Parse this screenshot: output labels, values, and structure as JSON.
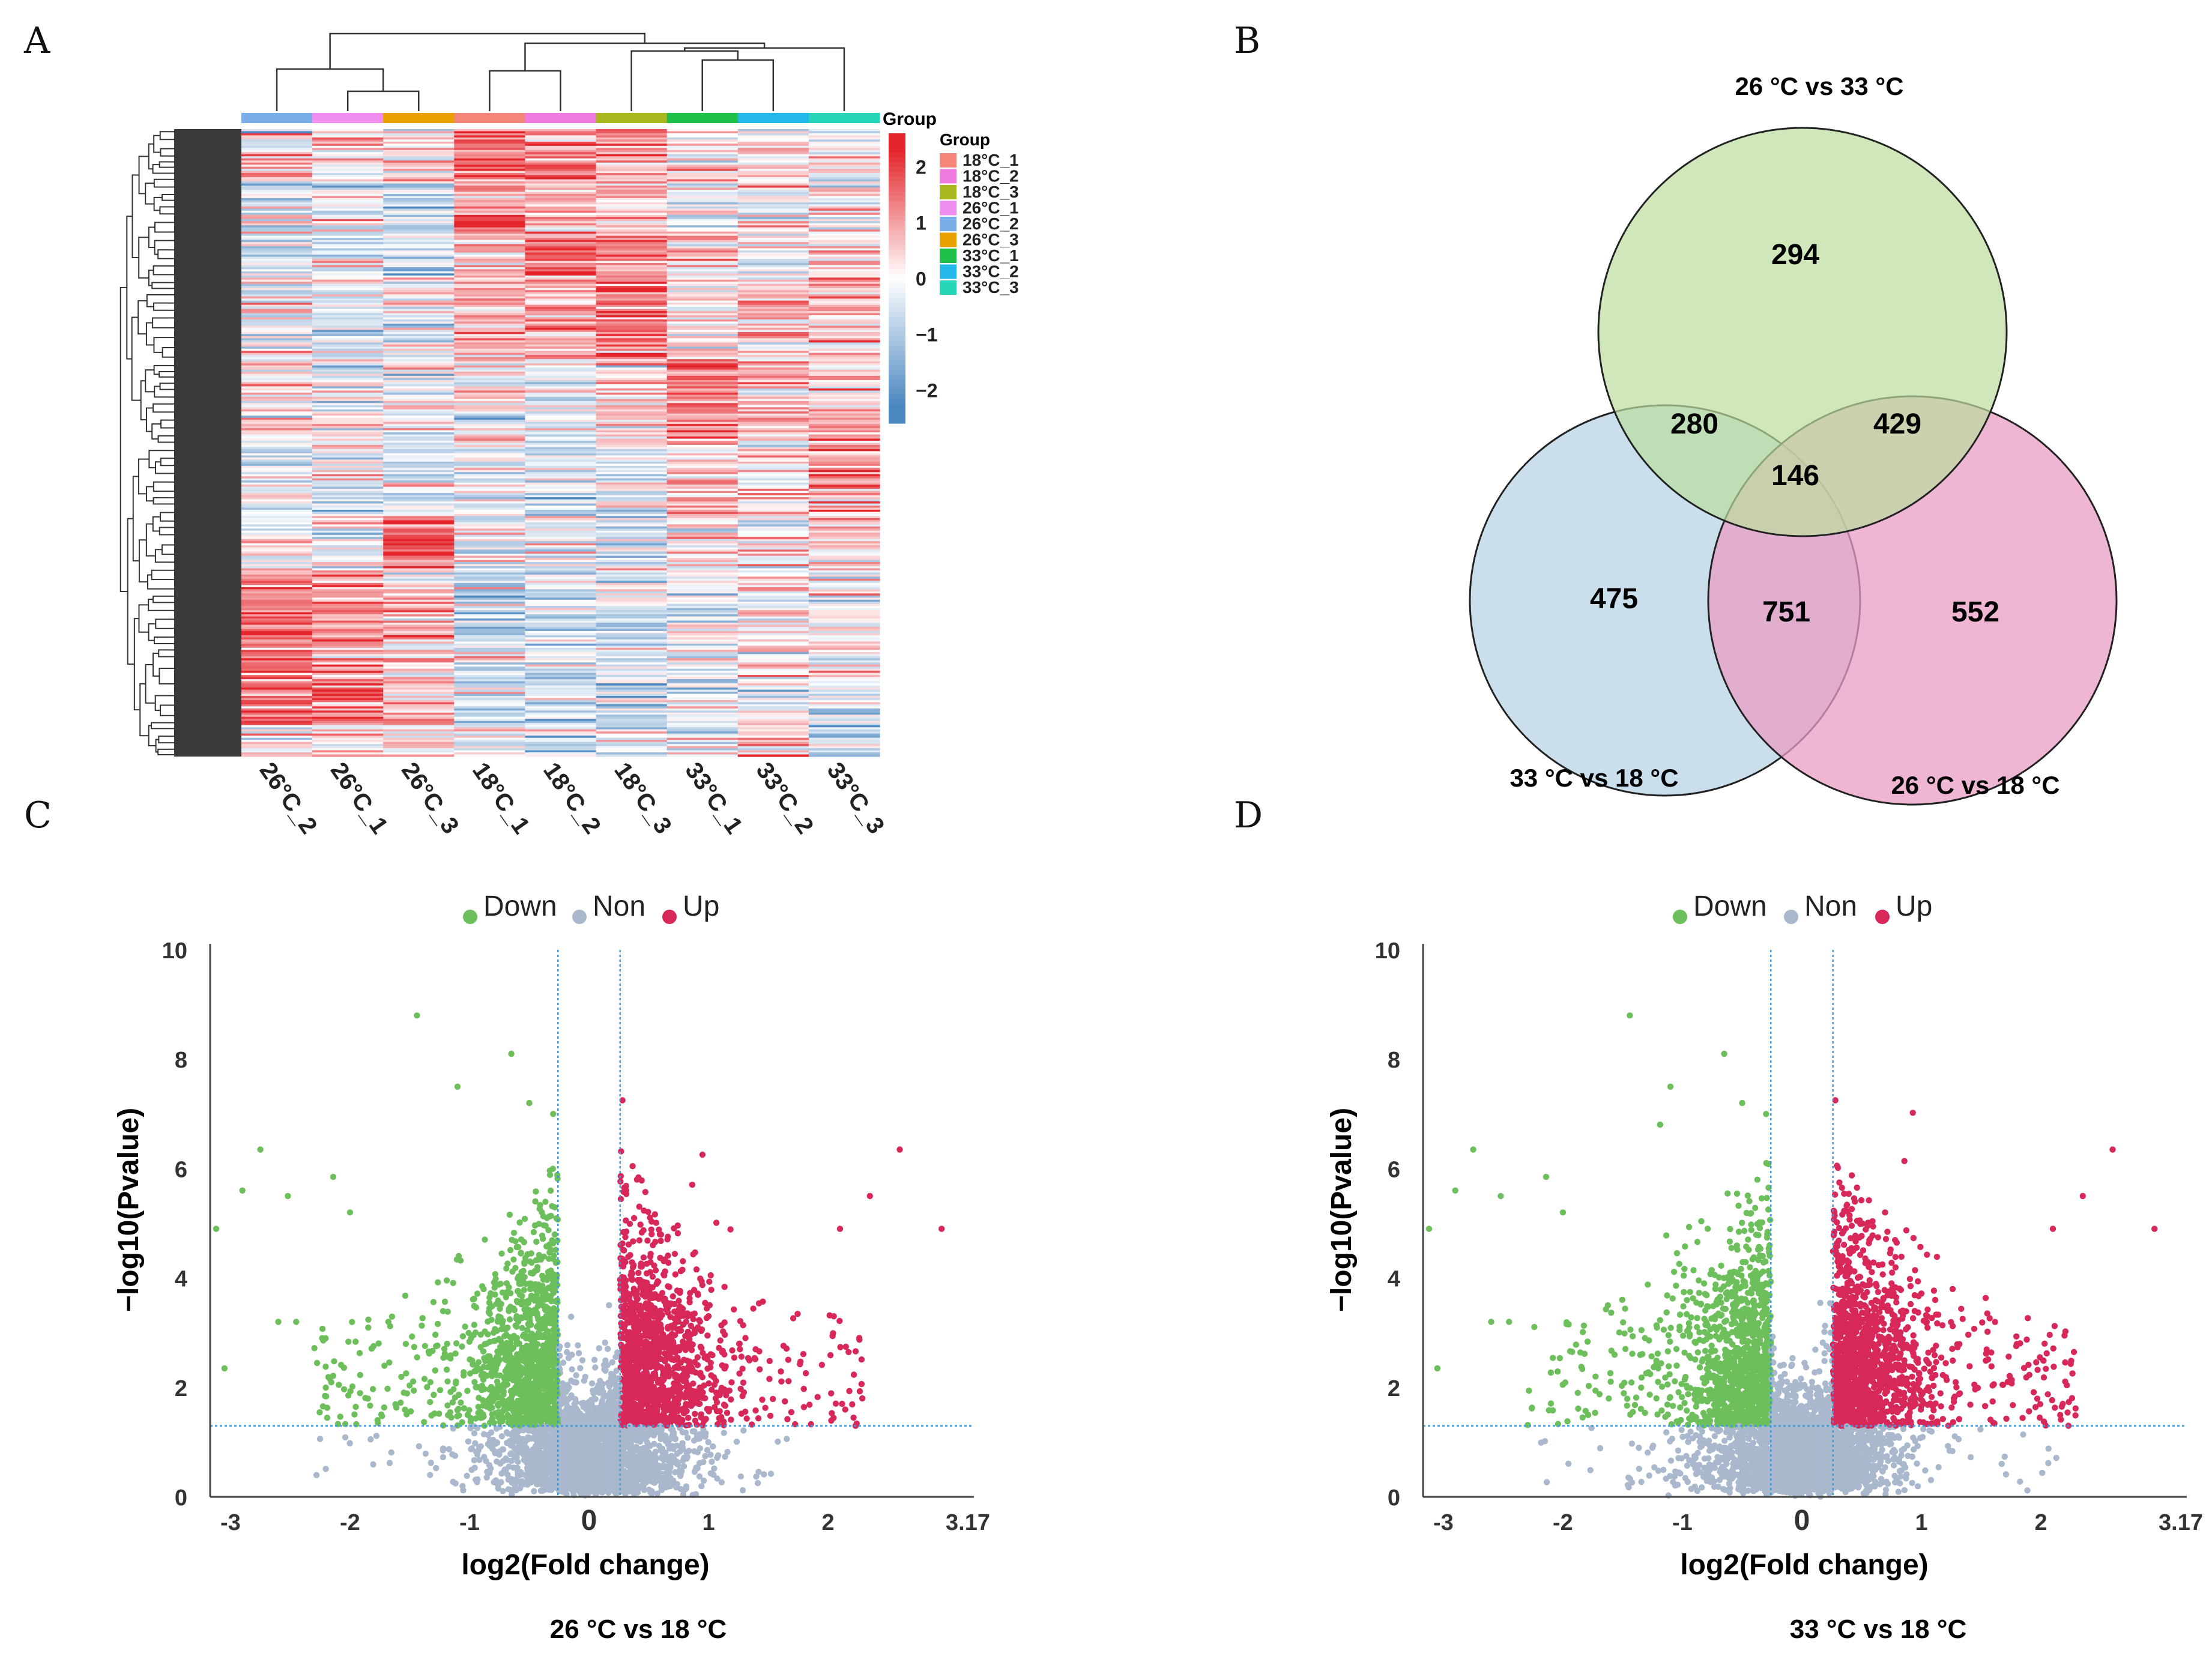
{
  "panels": {
    "a": "A",
    "b": "B",
    "c": "C",
    "d": "D"
  },
  "colors": {
    "down": "#6dbf5c",
    "non": "#a9b8cc",
    "up": "#d8285a",
    "threshold_line": "#3a9ad9",
    "heat_high": "#e4252b",
    "heat_mid": "#ffffff",
    "heat_low": "#4a86c0",
    "venn_top": "#bcdd9e",
    "venn_left": "#b3d1e3",
    "venn_right": "#ea9ec5"
  },
  "chart_data": [
    {
      "type": "heatmap",
      "panel": "A",
      "columns": [
        "26°C_2",
        "26°C_1",
        "26°C_3",
        "18°C_1",
        "18°C_2",
        "18°C_3",
        "33°C_1",
        "33°C_2",
        "33°C_3"
      ],
      "column_groups": [
        "26°C_2",
        "26°C_1",
        "26°C_3",
        "18°C_1",
        "18°C_2",
        "18°C_3",
        "33°C_1",
        "33°C_2",
        "33°C_3"
      ],
      "group_bar_label": "Group",
      "legend_title": "Group",
      "legend": [
        {
          "label": "18°C_1",
          "color": "#f4877a"
        },
        {
          "label": "18°C_2",
          "color": "#f07be0"
        },
        {
          "label": "18°C_3",
          "color": "#a8b81e"
        },
        {
          "label": "26°C_1",
          "color": "#f08ef0"
        },
        {
          "label": "26°C_2",
          "color": "#7aaee8"
        },
        {
          "label": "26°C_3",
          "color": "#e9a100"
        },
        {
          "label": "33°C_1",
          "color": "#1fbf4a"
        },
        {
          "label": "33°C_2",
          "color": "#22b8e8"
        },
        {
          "label": "33°C_3",
          "color": "#26d6b8"
        }
      ],
      "colorbar_ticks": [
        "2",
        "1",
        "0",
        "−1",
        "−2"
      ],
      "value_range": [
        -2.6,
        2.6
      ]
    },
    {
      "type": "venn",
      "panel": "B",
      "sets": [
        "26 °C vs 33 °C",
        "33 °C vs 18 °C",
        "26 °C vs 18 °C"
      ],
      "regions": {
        "top_only": "294",
        "left_only": "475",
        "right_only": "552",
        "top_left": "280",
        "top_right": "429",
        "left_right": "751",
        "all": "146"
      }
    },
    {
      "type": "scatter",
      "panel": "C",
      "title": "26 °C vs 18 °C",
      "xlabel": "log2(Fold change)",
      "ylabel": "−log10(Pvalue)",
      "xlim": [
        -3.17,
        3.17
      ],
      "ylim": [
        0,
        10
      ],
      "xticks": [
        "-3",
        "-2",
        "-1",
        "0",
        "1",
        "2",
        "3.17"
      ],
      "xtick_values": [
        -3,
        -2,
        -1,
        0,
        1,
        2,
        3.17
      ],
      "yticks": [
        "0",
        "2",
        "4",
        "6",
        "8",
        "10"
      ],
      "ytick_values": [
        0,
        2,
        4,
        6,
        8,
        10
      ],
      "legend": [
        "Down",
        "Non",
        "Up"
      ],
      "thresholds": {
        "fc_low": -0.26,
        "fc_high": 0.26,
        "p": 1.3
      },
      "seed": 7,
      "n_points": 5200,
      "outliers": [
        [
          -3.12,
          4.9
        ],
        [
          -3.05,
          2.35
        ],
        [
          -2.9,
          5.6
        ],
        [
          -2.75,
          6.35
        ],
        [
          -2.6,
          3.2
        ],
        [
          -2.52,
          5.5
        ],
        [
          -2.45,
          3.2
        ],
        [
          -2.14,
          5.85
        ],
        [
          -2.0,
          5.2
        ],
        [
          -1.44,
          8.8
        ],
        [
          -1.1,
          7.5
        ],
        [
          -0.65,
          8.1
        ],
        [
          -0.5,
          7.2
        ],
        [
          -0.3,
          7.0
        ],
        [
          0.28,
          7.25
        ],
        [
          2.6,
          6.35
        ],
        [
          2.95,
          4.9
        ],
        [
          2.35,
          5.5
        ],
        [
          2.1,
          4.9
        ],
        [
          2.23,
          1.3
        ]
      ]
    },
    {
      "type": "scatter",
      "panel": "D",
      "title": "33 °C vs 18 °C",
      "xlabel": "log2(Fold change)",
      "ylabel": "−log10(Pvalue)",
      "xlim": [
        -3.17,
        3.17
      ],
      "ylim": [
        0,
        10
      ],
      "xticks": [
        "-3",
        "-2",
        "-1",
        "0",
        "1",
        "2",
        "3.17"
      ],
      "xtick_values": [
        -3,
        -2,
        -1,
        0,
        1,
        2,
        3.17
      ],
      "yticks": [
        "0",
        "2",
        "4",
        "6",
        "8",
        "10"
      ],
      "ytick_values": [
        0,
        2,
        4,
        6,
        8,
        10
      ],
      "legend": [
        "Down",
        "Non",
        "Up"
      ],
      "thresholds": {
        "fc_low": -0.26,
        "fc_high": 0.26,
        "p": 1.3
      },
      "seed": 19,
      "n_points": 5200,
      "outliers": [
        [
          -3.12,
          4.9
        ],
        [
          -3.05,
          2.35
        ],
        [
          -2.9,
          5.6
        ],
        [
          -2.75,
          6.35
        ],
        [
          -2.6,
          3.2
        ],
        [
          -2.52,
          5.5
        ],
        [
          -2.45,
          3.2
        ],
        [
          -2.14,
          5.85
        ],
        [
          -2.0,
          5.2
        ],
        [
          -1.44,
          8.8
        ],
        [
          -1.1,
          7.5
        ],
        [
          -0.65,
          8.1
        ],
        [
          -0.5,
          7.2
        ],
        [
          -0.3,
          7.0
        ],
        [
          0.28,
          7.25
        ],
        [
          2.6,
          6.35
        ],
        [
          2.95,
          4.9
        ],
        [
          2.35,
          5.5
        ],
        [
          2.1,
          4.9
        ],
        [
          2.23,
          1.3
        ]
      ]
    }
  ]
}
